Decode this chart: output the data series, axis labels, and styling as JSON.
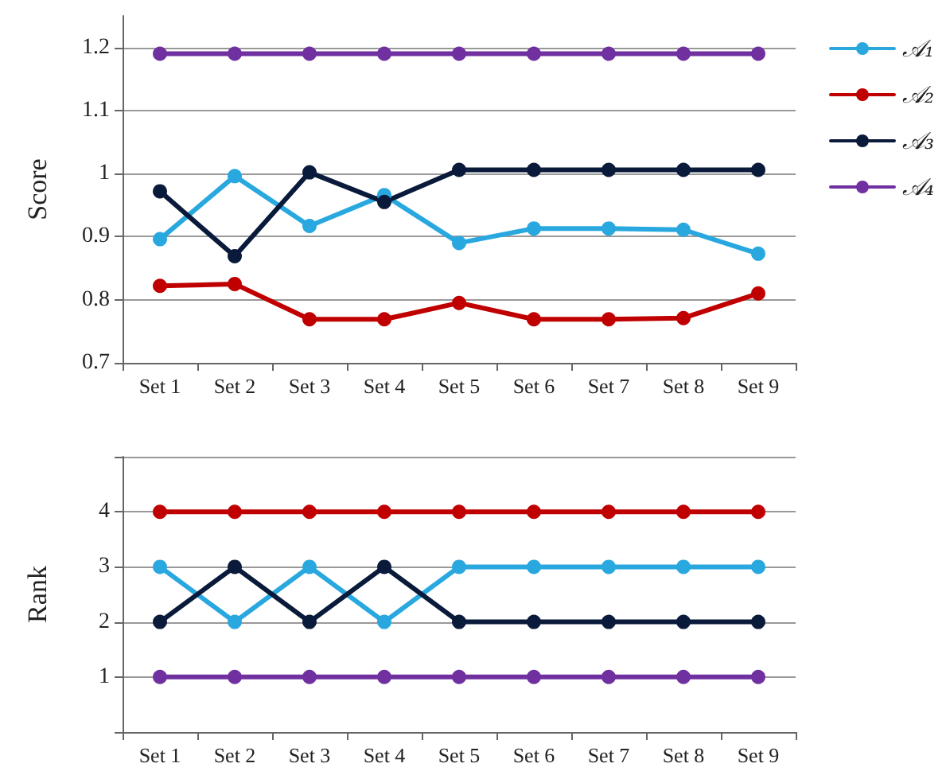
{
  "chart_data": [
    {
      "type": "line",
      "ylabel": "Score",
      "categories": [
        "Set 1",
        "Set 2",
        "Set 3",
        "Set 4",
        "Set 5",
        "Set 6",
        "Set 7",
        "Set 8",
        "Set 9"
      ],
      "series": [
        {
          "name": "𝒜₁",
          "color": "#29a8e0",
          "values": [
            0.896,
            0.996,
            0.917,
            0.966,
            0.89,
            0.913,
            0.913,
            0.911,
            0.873
          ]
        },
        {
          "name": "𝒜₂",
          "color": "#c00000",
          "values": [
            0.822,
            0.825,
            0.769,
            0.769,
            0.795,
            0.769,
            0.769,
            0.771,
            0.81
          ]
        },
        {
          "name": "𝒜₃",
          "color": "#0a1a3a",
          "values": [
            0.972,
            0.869,
            1.002,
            0.955,
            1.006,
            1.006,
            1.006,
            1.006,
            1.006
          ]
        },
        {
          "name": "𝒜₄",
          "color": "#7030a0",
          "values": [
            1.19,
            1.19,
            1.19,
            1.19,
            1.19,
            1.19,
            1.19,
            1.19,
            1.19
          ]
        }
      ],
      "ylim": [
        0.7,
        1.25
      ],
      "yticks": [
        0.7,
        0.8,
        0.9,
        1,
        1.1,
        1.2
      ],
      "grid": "y",
      "legend": "right",
      "marker": "circle",
      "line_style": "solid"
    },
    {
      "type": "line",
      "ylabel": "Rank",
      "categories": [
        "Set 1",
        "Set 2",
        "Set 3",
        "Set 4",
        "Set 5",
        "Set 6",
        "Set 7",
        "Set 8",
        "Set 9"
      ],
      "series": [
        {
          "color": "#29a8e0",
          "values": [
            3,
            2,
            3,
            2,
            3,
            3,
            3,
            3,
            3
          ]
        },
        {
          "color": "#c00000",
          "values": [
            4,
            4,
            4,
            4,
            4,
            4,
            4,
            4,
            4
          ]
        },
        {
          "color": "#0a1a3a",
          "values": [
            2,
            3,
            2,
            3,
            2,
            2,
            2,
            2,
            2
          ]
        },
        {
          "color": "#7030a0",
          "values": [
            1,
            1,
            1,
            1,
            1,
            1,
            1,
            1,
            1
          ]
        }
      ],
      "ylim": [
        0,
        5
      ],
      "yticks": [
        {
          "value": 0,
          "label": null
        },
        1,
        2,
        3,
        4,
        {
          "value": 5,
          "label": null
        }
      ],
      "grid": "y",
      "marker": "circle",
      "line_style": "solid"
    }
  ]
}
